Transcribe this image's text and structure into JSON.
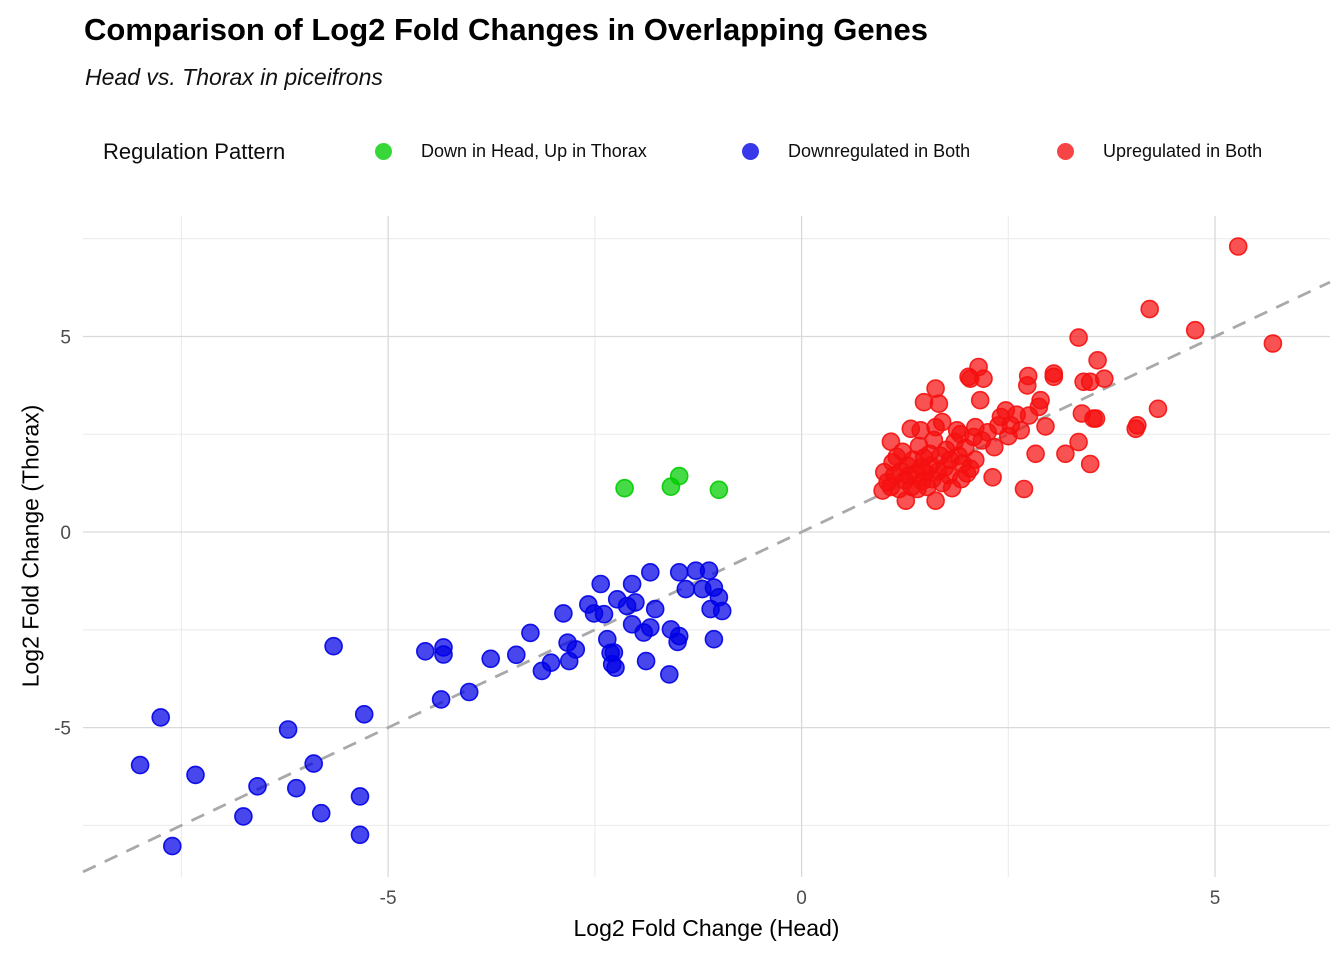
{
  "header": {
    "title": "Comparison of Log2 Fold Changes in Overlapping Genes",
    "subtitle": "Head vs. Thorax in piceifrons"
  },
  "legend": {
    "title": "Regulation Pattern",
    "items": [
      {
        "label": "Down in Head, Up in Thorax",
        "color": "#00cc00"
      },
      {
        "label": "Downregulated in Both",
        "color": "#0000e6"
      },
      {
        "label": "Upregulated in Both",
        "color": "#f50f0f"
      }
    ]
  },
  "axes": {
    "xlabel": "Log2 Fold Change (Head)",
    "ylabel": "Log2 Fold Change (Thorax)",
    "x_tick_labels": [
      "-5",
      "0",
      "5"
    ],
    "y_tick_labels": [
      "-5",
      "0",
      "5"
    ]
  },
  "chart_data": {
    "type": "scatter",
    "title": "Comparison of Log2 Fold Changes in Overlapping Genes",
    "subtitle": "Head vs. Thorax in piceifrons",
    "xlabel": "Log2 Fold Change (Head)",
    "ylabel": "Log2 Fold Change (Thorax)",
    "xlim": [
      -8.69,
      6.39
    ],
    "ylim": [
      -8.82,
      8.08
    ],
    "x_major_ticks": [
      -5,
      0,
      5
    ],
    "y_major_ticks": [
      -5,
      0,
      5
    ],
    "x_minor_ticks": [
      -7.5,
      -2.5,
      2.5
    ],
    "y_minor_ticks": [
      -7.5,
      -2.5,
      2.5,
      7.5
    ],
    "grid": true,
    "legend_position": "top",
    "reference_line": {
      "type": "identity",
      "slope": 1,
      "intercept": 0,
      "style": "dashed",
      "color": "#a9a9a9"
    },
    "colors": {
      "major_grid": "#d9d9d9",
      "minor_grid": "#ebebeb",
      "tick_label": "#4d4d4d"
    },
    "series": [
      {
        "name": "Down in Head, Up in Thorax",
        "color": "#00cc00",
        "points": [
          [
            -2.14,
            1.12
          ],
          [
            -1.58,
            1.16
          ],
          [
            -1.48,
            1.43
          ],
          [
            -1.0,
            1.08
          ]
        ]
      },
      {
        "name": "Downregulated in Both",
        "color": "#0000e6",
        "points": [
          [
            -8.0,
            -5.96
          ],
          [
            -7.75,
            -4.74
          ],
          [
            -7.61,
            -8.03
          ],
          [
            -7.33,
            -6.21
          ],
          [
            -6.75,
            -7.27
          ],
          [
            -6.58,
            -6.5
          ],
          [
            -6.21,
            -5.05
          ],
          [
            -6.11,
            -6.55
          ],
          [
            -5.9,
            -5.92
          ],
          [
            -5.81,
            -7.19
          ],
          [
            -5.66,
            -2.92
          ],
          [
            -5.34,
            -6.76
          ],
          [
            -5.34,
            -7.74
          ],
          [
            -5.29,
            -4.66
          ],
          [
            -4.55,
            -3.05
          ],
          [
            -4.36,
            -4.28
          ],
          [
            -4.33,
            -2.95
          ],
          [
            -4.33,
            -3.13
          ],
          [
            -4.02,
            -4.09
          ],
          [
            -3.76,
            -3.24
          ],
          [
            -3.45,
            -3.14
          ],
          [
            -3.28,
            -2.58
          ],
          [
            -3.14,
            -3.55
          ],
          [
            -3.03,
            -3.34
          ],
          [
            -2.88,
            -2.08
          ],
          [
            -2.83,
            -2.83
          ],
          [
            -2.81,
            -3.3
          ],
          [
            -2.73,
            -3.0
          ],
          [
            -2.58,
            -1.85
          ],
          [
            -2.51,
            -2.08
          ],
          [
            -2.43,
            -1.33
          ],
          [
            -2.39,
            -2.1
          ],
          [
            -2.35,
            -2.74
          ],
          [
            -2.31,
            -3.09
          ],
          [
            -2.29,
            -3.38
          ],
          [
            -2.27,
            -3.08
          ],
          [
            -2.25,
            -3.47
          ],
          [
            -2.23,
            -1.72
          ],
          [
            -2.11,
            -1.89
          ],
          [
            -2.05,
            -2.36
          ],
          [
            -2.05,
            -1.33
          ],
          [
            -2.01,
            -1.8
          ],
          [
            -1.91,
            -2.57
          ],
          [
            -1.88,
            -3.3
          ],
          [
            -1.83,
            -2.44
          ],
          [
            -1.83,
            -1.03
          ],
          [
            -1.77,
            -1.97
          ],
          [
            -1.6,
            -3.64
          ],
          [
            -1.58,
            -2.49
          ],
          [
            -1.5,
            -2.81
          ],
          [
            -1.48,
            -2.66
          ],
          [
            -1.48,
            -1.03
          ],
          [
            -1.4,
            -1.46
          ],
          [
            -1.28,
            -0.99
          ],
          [
            -1.2,
            -1.46
          ],
          [
            -1.12,
            -0.99
          ],
          [
            -1.06,
            -1.42
          ],
          [
            -1.06,
            -2.74
          ],
          [
            -1.1,
            -1.97
          ],
          [
            -1.0,
            -1.67
          ],
          [
            -0.96,
            -2.02
          ]
        ]
      },
      {
        "name": "Upregulated in Both",
        "color": "#f50f0f",
        "points": [
          [
            0.98,
            1.06
          ],
          [
            1.0,
            1.53
          ],
          [
            1.04,
            1.28
          ],
          [
            1.08,
            2.31
          ],
          [
            1.08,
            1.15
          ],
          [
            1.1,
            1.78
          ],
          [
            1.12,
            1.45
          ],
          [
            1.15,
            1.92
          ],
          [
            1.18,
            1.1
          ],
          [
            1.2,
            1.55
          ],
          [
            1.22,
            2.05
          ],
          [
            1.25,
            1.32
          ],
          [
            1.26,
            0.8
          ],
          [
            1.28,
            1.7
          ],
          [
            1.3,
            1.45
          ],
          [
            1.32,
            2.64
          ],
          [
            1.33,
            1.15
          ],
          [
            1.35,
            1.85
          ],
          [
            1.38,
            1.5
          ],
          [
            1.4,
            1.1
          ],
          [
            1.42,
            2.2
          ],
          [
            1.44,
            2.6
          ],
          [
            1.45,
            1.65
          ],
          [
            1.46,
            1.3
          ],
          [
            1.48,
            1.9
          ],
          [
            1.5,
            1.52
          ],
          [
            1.52,
            1.15
          ],
          [
            1.55,
            2.0
          ],
          [
            1.56,
            1.7
          ],
          [
            1.58,
            1.35
          ],
          [
            1.6,
            2.35
          ],
          [
            1.62,
            2.68
          ],
          [
            1.62,
            0.8
          ],
          [
            1.65,
            1.55
          ],
          [
            1.68,
            1.95
          ],
          [
            1.7,
            1.25
          ],
          [
            1.73,
            1.65
          ],
          [
            1.75,
            2.1
          ],
          [
            1.78,
            1.45
          ],
          [
            1.8,
            1.85
          ],
          [
            1.82,
            1.12
          ],
          [
            1.85,
            2.3
          ],
          [
            1.88,
            2.6
          ],
          [
            1.9,
            1.95
          ],
          [
            1.92,
            2.5
          ],
          [
            1.93,
            1.35
          ],
          [
            1.95,
            1.75
          ],
          [
            1.98,
            2.15
          ],
          [
            2.0,
            1.5
          ],
          [
            2.04,
            1.62
          ],
          [
            2.08,
            2.43
          ],
          [
            2.1,
            1.85
          ],
          [
            2.18,
            2.34
          ],
          [
            2.31,
            1.4
          ],
          [
            2.33,
            2.17
          ],
          [
            2.69,
            1.1
          ],
          [
            1.48,
            3.32
          ],
          [
            1.62,
            3.67
          ],
          [
            1.66,
            3.28
          ],
          [
            1.7,
            2.81
          ],
          [
            2.02,
            3.97
          ],
          [
            2.04,
            3.92
          ],
          [
            2.1,
            2.68
          ],
          [
            2.14,
            4.22
          ],
          [
            2.16,
            3.37
          ],
          [
            2.2,
            3.92
          ],
          [
            2.25,
            2.55
          ],
          [
            2.38,
            2.72
          ],
          [
            2.41,
            2.94
          ],
          [
            2.47,
            3.11
          ],
          [
            2.5,
            2.45
          ],
          [
            2.53,
            2.73
          ],
          [
            2.6,
            3.0
          ],
          [
            2.65,
            2.6
          ],
          [
            2.73,
            3.75
          ],
          [
            2.74,
            3.99
          ],
          [
            2.75,
            2.98
          ],
          [
            2.83,
            2.0
          ],
          [
            2.87,
            3.2
          ],
          [
            2.89,
            3.37
          ],
          [
            2.95,
            2.7
          ],
          [
            3.05,
            3.97
          ],
          [
            3.05,
            4.05
          ],
          [
            3.19,
            2.0
          ],
          [
            3.35,
            2.3
          ],
          [
            3.39,
            3.03
          ],
          [
            3.41,
            3.84
          ],
          [
            3.49,
            3.84
          ],
          [
            3.49,
            1.74
          ],
          [
            3.53,
            2.9
          ],
          [
            3.56,
            2.9
          ],
          [
            3.58,
            4.39
          ],
          [
            3.66,
            3.92
          ],
          [
            3.35,
            4.97
          ],
          [
            4.04,
            2.64
          ],
          [
            4.06,
            2.73
          ],
          [
            4.21,
            5.7
          ],
          [
            4.31,
            3.15
          ],
          [
            4.76,
            5.16
          ],
          [
            5.28,
            7.3
          ],
          [
            5.7,
            4.82
          ]
        ]
      }
    ]
  }
}
